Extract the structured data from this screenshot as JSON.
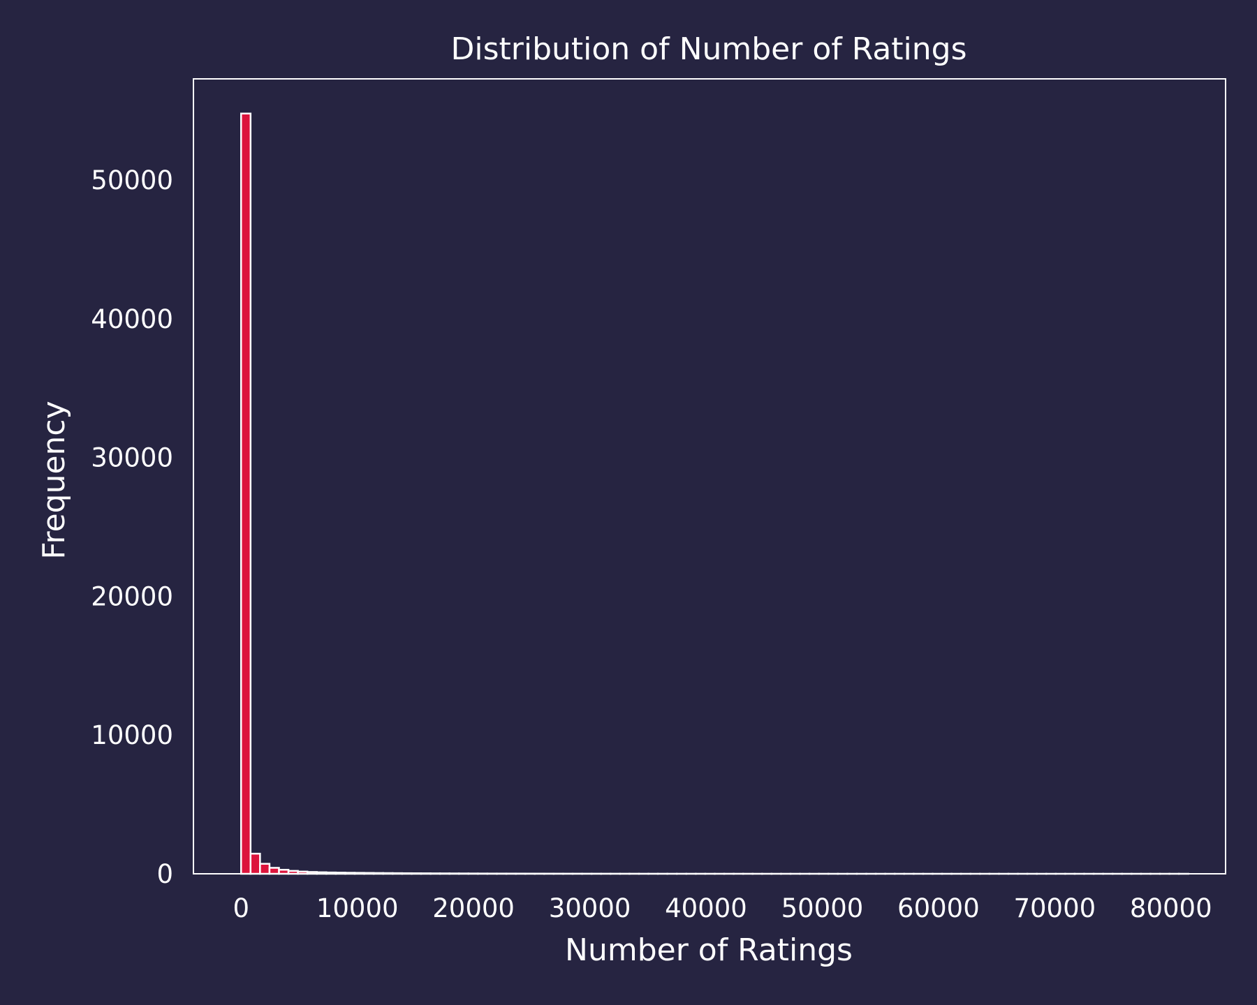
{
  "chart_data": {
    "type": "bar",
    "title": "Distribution of Number of Ratings",
    "xlabel": "Number of Ratings",
    "ylabel": "Frequency",
    "xlim": [
      -4100,
      84700
    ],
    "ylim": [
      0,
      57300
    ],
    "xticks": [
      0,
      10000,
      20000,
      30000,
      40000,
      50000,
      60000,
      70000,
      80000
    ],
    "yticks": [
      0,
      10000,
      20000,
      30000,
      40000,
      50000
    ],
    "bin_start": 0,
    "bin_width": 815,
    "values": [
      54800,
      1450,
      720,
      430,
      290,
      210,
      160,
      130,
      110,
      95,
      85,
      75,
      68,
      62,
      55,
      50,
      45,
      40,
      37,
      34,
      30,
      28,
      25,
      23,
      21,
      19,
      17,
      16,
      15,
      14,
      13,
      12,
      11,
      10,
      9,
      9,
      8,
      8,
      7,
      7,
      6,
      6,
      5,
      5,
      5,
      4,
      4,
      4,
      4,
      3,
      3,
      3,
      3,
      3,
      2,
      2,
      2,
      2,
      2,
      2,
      2,
      2,
      1,
      1,
      1,
      1,
      1,
      1,
      1,
      1,
      1,
      1,
      1,
      1,
      1,
      1,
      1,
      1,
      1,
      1,
      1,
      1,
      1,
      1,
      1,
      1,
      1,
      1,
      1,
      1,
      1,
      1,
      1,
      1,
      1,
      1,
      1,
      1,
      1,
      1
    ],
    "grid": false,
    "colors": {
      "background": "#262441",
      "bar_fill": "#dc143c",
      "bar_edge": "#ffffff",
      "text": "#ffffff",
      "axes": "#ffffff"
    }
  }
}
